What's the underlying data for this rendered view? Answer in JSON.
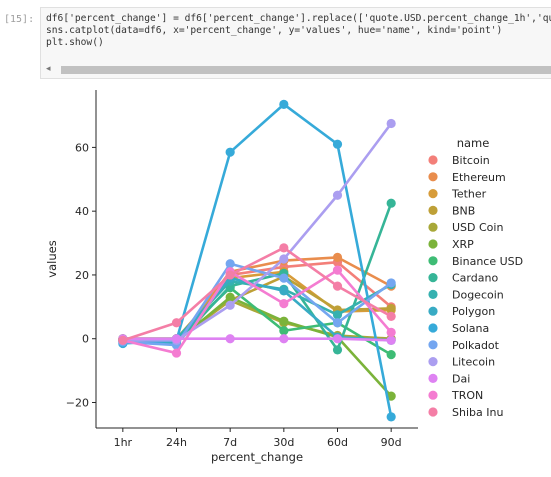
{
  "notebook": {
    "prompt": "[15]:",
    "code_lines": [
      "df6['percent_change'] = df6['percent_change'].replace(['quote.USD.percent_change_1h','quo",
      "sns.catplot(data=df6, x='percent_change', y='values', hue='name', kind='point')",
      "plt.show()"
    ],
    "scroll_left_icon": "◂"
  },
  "chart_data": {
    "type": "line",
    "title": "",
    "xlabel": "percent_change",
    "ylabel": "values",
    "categories": [
      "1hr",
      "24h",
      "7d",
      "30d",
      "60d",
      "90d"
    ],
    "ylim": [
      -28,
      78
    ],
    "yticks": [
      -20,
      0,
      20,
      40,
      60
    ],
    "ytick_labels": [
      "−20",
      "0",
      "20",
      "40",
      "60"
    ],
    "grid": false,
    "legend_title": "name",
    "legend_position": "right",
    "series": [
      {
        "name": "Bitcoin",
        "color": "#f37f79",
        "values": [
          -0.5,
          -1.5,
          20.0,
          22.5,
          24.0,
          10.0
        ]
      },
      {
        "name": "Ethereum",
        "color": "#e98d4d",
        "values": [
          -0.5,
          -1.0,
          21.0,
          24.5,
          25.5,
          16.5
        ]
      },
      {
        "name": "Tether",
        "color": "#d79c3a",
        "values": [
          0.0,
          0.0,
          19.0,
          21.0,
          8.5,
          9.0
        ]
      },
      {
        "name": "BNB",
        "color": "#bea037",
        "values": [
          -0.5,
          -0.5,
          12.0,
          19.5,
          9.0,
          9.5
        ]
      },
      {
        "name": "USD Coin",
        "color": "#a8a838",
        "values": [
          0.0,
          0.0,
          12.0,
          5.0,
          1.0,
          0.0
        ]
      },
      {
        "name": "XRP",
        "color": "#7bb33a",
        "values": [
          -0.5,
          -1.0,
          13.0,
          5.5,
          0.5,
          -18.0
        ]
      },
      {
        "name": "Binance USD",
        "color": "#3ebc75",
        "values": [
          0.0,
          0.0,
          16.0,
          2.5,
          5.0,
          -5.0
        ]
      },
      {
        "name": "Cardano",
        "color": "#36b597",
        "values": [
          -0.5,
          -1.5,
          16.5,
          20.5,
          -3.5,
          42.5
        ]
      },
      {
        "name": "Dogecoin",
        "color": "#36b1b0",
        "values": [
          -0.5,
          0.0,
          18.0,
          15.5,
          7.5,
          17.0
        ]
      },
      {
        "name": "Polygon",
        "color": "#38abc4",
        "values": [
          -1.0,
          -1.0,
          19.0,
          15.0,
          0.5,
          -0.5
        ]
      },
      {
        "name": "Solana",
        "color": "#36aad9",
        "values": [
          -1.5,
          -0.5,
          58.5,
          73.5,
          61.0,
          -24.5
        ]
      },
      {
        "name": "Polkadot",
        "color": "#74a6f0",
        "values": [
          -1.0,
          -2.0,
          23.5,
          19.0,
          5.0,
          17.5
        ]
      },
      {
        "name": "Litecoin",
        "color": "#ab9ef0",
        "values": [
          -0.5,
          -0.5,
          10.5,
          25.0,
          45.0,
          67.5
        ]
      },
      {
        "name": "Dai",
        "color": "#de82f2",
        "values": [
          0.0,
          0.0,
          0.0,
          0.0,
          0.0,
          -0.5
        ]
      },
      {
        "name": "TRON",
        "color": "#f47cd1",
        "values": [
          -0.5,
          -4.5,
          21.0,
          11.0,
          21.5,
          2.0
        ]
      },
      {
        "name": "Shiba Inu",
        "color": "#f47ea6",
        "values": [
          -0.5,
          5.0,
          20.0,
          28.5,
          16.5,
          7.0
        ]
      }
    ]
  }
}
